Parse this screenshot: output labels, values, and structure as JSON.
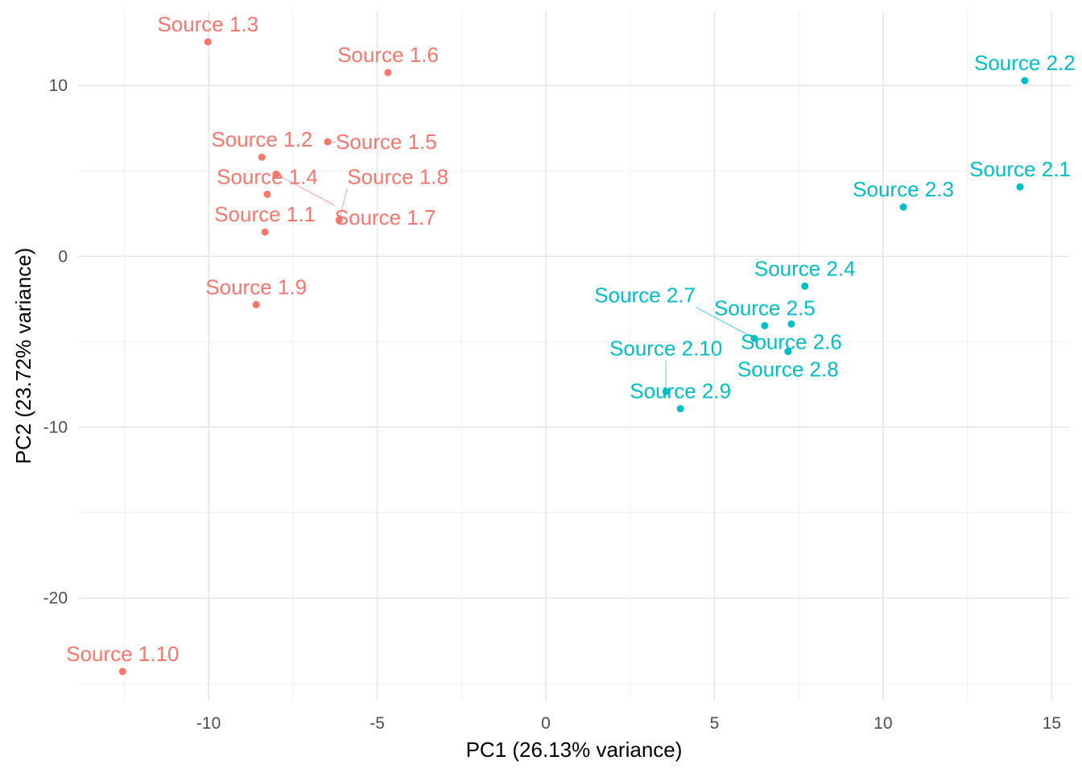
{
  "chart_data": {
    "type": "scatter",
    "xlabel": "PC1 (26.13% variance)",
    "ylabel": "PC2 (23.72% variance)",
    "xlim": [
      -13.87,
      15.54
    ],
    "ylim": [
      -26.0,
      14.34
    ],
    "x_ticks": [
      -10,
      -5,
      0,
      5,
      10,
      15
    ],
    "y_ticks": [
      -20,
      -10,
      0,
      10
    ],
    "x_tick_labels": [
      "-10",
      "-5",
      "0",
      "5",
      "10",
      "15"
    ],
    "y_tick_labels": [
      "-20",
      "-10",
      "0",
      "10"
    ],
    "grid": true,
    "legend": "none",
    "groups": [
      {
        "color": "#F8766D",
        "points": [
          {
            "label": "Source 1.1",
            "x": -8.33,
            "y": 1.42
          },
          {
            "label": "Source 1.2",
            "x": -8.42,
            "y": 5.8
          },
          {
            "label": "Source 1.3",
            "x": -10.02,
            "y": 12.55
          },
          {
            "label": "Source 1.4",
            "x": -8.26,
            "y": 3.63
          },
          {
            "label": "Source 1.5",
            "x": -6.47,
            "y": 6.7
          },
          {
            "label": "Source 1.6",
            "x": -4.68,
            "y": 10.75
          },
          {
            "label": "Source 1.7",
            "x": -8.0,
            "y": 4.81
          },
          {
            "label": "Source 1.8",
            "x": -6.13,
            "y": 2.12
          },
          {
            "label": "Source 1.9",
            "x": -8.59,
            "y": -2.83
          },
          {
            "label": "Source 1.10",
            "x": -12.55,
            "y": -24.3
          }
        ]
      },
      {
        "color": "#00BFC4",
        "points": [
          {
            "label": "Source 2.1",
            "x": 14.06,
            "y": 4.06
          },
          {
            "label": "Source 2.2",
            "x": 14.2,
            "y": 10.28
          },
          {
            "label": "Source 2.3",
            "x": 10.6,
            "y": 2.88
          },
          {
            "label": "Source 2.4",
            "x": 7.68,
            "y": -1.75
          },
          {
            "label": "Source 2.5",
            "x": 6.49,
            "y": -4.06
          },
          {
            "label": "Source 2.6",
            "x": 7.28,
            "y": -3.96
          },
          {
            "label": "Source 2.7",
            "x": 6.18,
            "y": -4.81
          },
          {
            "label": "Source 2.8",
            "x": 7.18,
            "y": -5.57
          },
          {
            "label": "Source 2.9",
            "x": 3.99,
            "y": -8.92
          },
          {
            "label": "Source 2.10",
            "x": 3.56,
            "y": -7.92
          }
        ]
      }
    ]
  }
}
